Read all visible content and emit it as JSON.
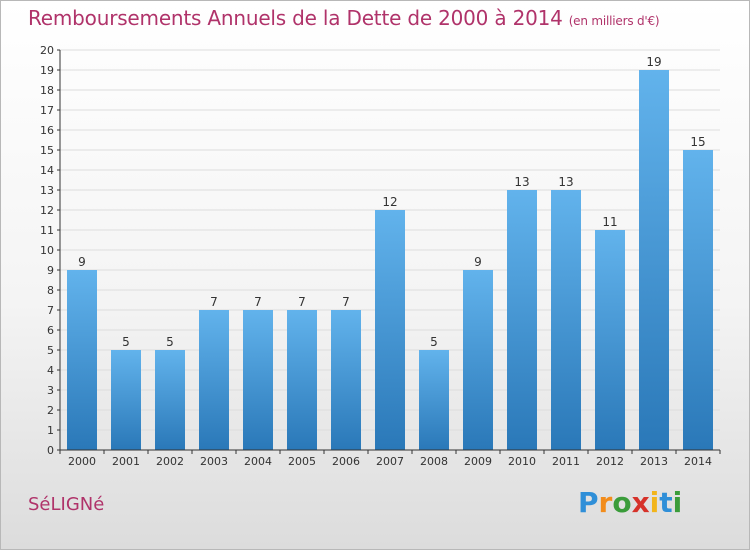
{
  "title": {
    "main": "Remboursements Annuels de la Dette de 2000 à 2014",
    "unit": "(en milliers d'€)"
  },
  "commune": "SéLIGNé",
  "brand": {
    "text": "Proxiti",
    "letters": [
      {
        "ch": "P",
        "color": "#2f8fd8"
      },
      {
        "ch": "r",
        "color": "#f28c1b"
      },
      {
        "ch": "o",
        "color": "#3a9c3a"
      },
      {
        "ch": "x",
        "color": "#d6322a"
      },
      {
        "ch": "i",
        "color": "#f2b51b"
      },
      {
        "ch": "t",
        "color": "#2f8fd8"
      },
      {
        "ch": "i",
        "color": "#3a9c3a"
      }
    ]
  },
  "colors": {
    "title": "#b0336a",
    "bar_top": "#62b3ec",
    "bar_bottom": "#2a78b8",
    "grid": "#dddddd",
    "axis": "#333333"
  },
  "chart_data": {
    "type": "bar",
    "categories": [
      "2000",
      "2001",
      "2002",
      "2003",
      "2004",
      "2005",
      "2006",
      "2007",
      "2008",
      "2009",
      "2010",
      "2011",
      "2012",
      "2013",
      "2014"
    ],
    "values": [
      9,
      5,
      5,
      7,
      7,
      7,
      7,
      12,
      5,
      9,
      13,
      13,
      11,
      19,
      15
    ],
    "ylim": [
      0,
      20
    ],
    "yticks": [
      0,
      1,
      2,
      3,
      4,
      5,
      6,
      7,
      8,
      9,
      10,
      11,
      12,
      13,
      14,
      15,
      16,
      17,
      18,
      19,
      20
    ],
    "grid": true,
    "data_labels": true
  }
}
